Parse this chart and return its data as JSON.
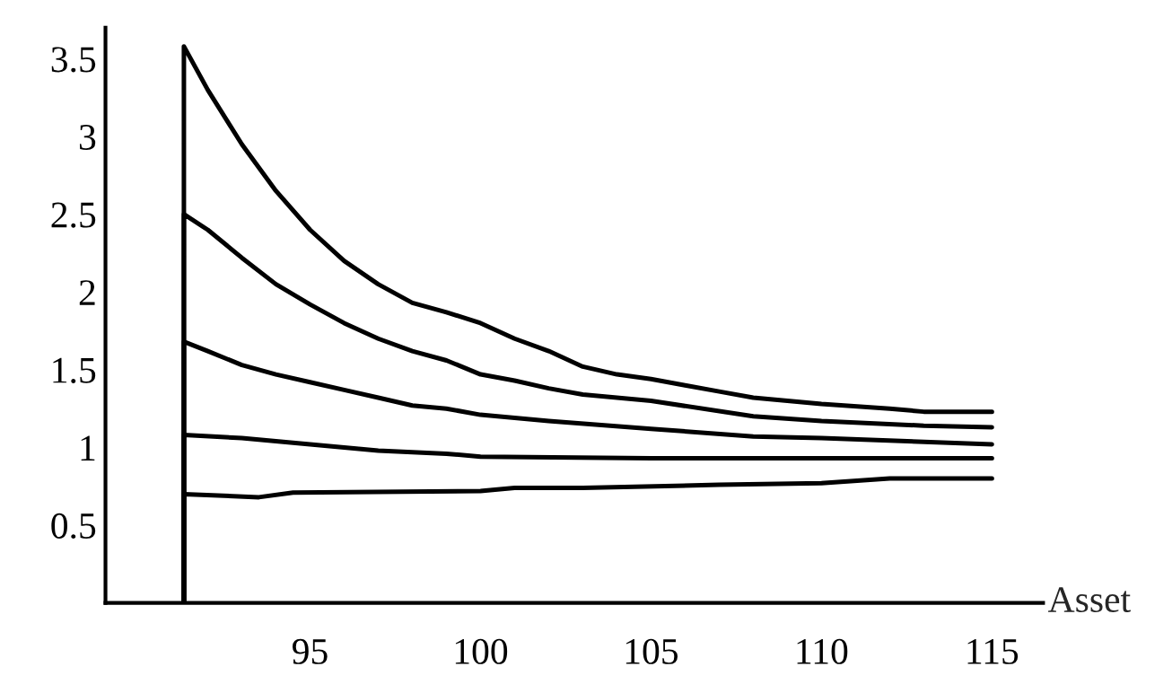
{
  "chart_data": {
    "type": "line",
    "xlabel": "Asset",
    "xlim": [
      89,
      116.5
    ],
    "ylim": [
      0,
      3.7
    ],
    "xticks": [
      95,
      100,
      105,
      110,
      115
    ],
    "yticks": [
      0.5,
      1,
      1.5,
      2,
      2.5,
      3,
      3.5
    ],
    "grid": false,
    "legend": false,
    "marker": "none",
    "line_style": "solid",
    "series": [
      {
        "color": "#000000",
        "x": [
          91.3,
          91.3,
          92,
          93,
          94,
          95,
          96,
          97,
          98,
          99,
          100,
          101,
          102,
          103,
          104,
          105,
          106,
          107,
          108,
          110,
          112,
          113,
          115
        ],
        "values": [
          0,
          3.58,
          3.3,
          2.95,
          2.65,
          2.4,
          2.2,
          2.05,
          1.93,
          1.87,
          1.8,
          1.7,
          1.62,
          1.52,
          1.47,
          1.44,
          1.4,
          1.36,
          1.32,
          1.28,
          1.25,
          1.23,
          1.23
        ]
      },
      {
        "color": "#000000",
        "x": [
          91.3,
          91.3,
          92,
          93,
          94,
          95,
          96,
          97,
          98,
          99,
          100,
          101,
          102,
          103,
          105,
          108,
          110,
          113,
          115
        ],
        "values": [
          0,
          2.5,
          2.4,
          2.22,
          2.05,
          1.92,
          1.8,
          1.7,
          1.62,
          1.56,
          1.47,
          1.43,
          1.38,
          1.34,
          1.3,
          1.2,
          1.17,
          1.14,
          1.13
        ]
      },
      {
        "color": "#000000",
        "x": [
          91.3,
          91.3,
          92,
          93,
          94,
          95,
          96,
          97,
          98,
          99,
          100,
          102,
          105,
          108,
          110,
          115
        ],
        "values": [
          0,
          1.68,
          1.62,
          1.53,
          1.47,
          1.42,
          1.37,
          1.32,
          1.27,
          1.25,
          1.21,
          1.17,
          1.12,
          1.07,
          1.06,
          1.02
        ]
      },
      {
        "color": "#000000",
        "x": [
          91.3,
          91.3,
          93,
          95,
          97,
          99,
          100,
          105,
          115
        ],
        "values": [
          0,
          1.08,
          1.06,
          1.02,
          0.98,
          0.96,
          0.94,
          0.93,
          0.93
        ]
      },
      {
        "color": "#000000",
        "x": [
          91.3,
          91.3,
          93.5,
          94.5,
          100,
          101,
          103,
          107,
          110,
          112,
          115
        ],
        "values": [
          0,
          0.7,
          0.68,
          0.71,
          0.72,
          0.74,
          0.74,
          0.76,
          0.77,
          0.8,
          0.8
        ]
      }
    ]
  }
}
